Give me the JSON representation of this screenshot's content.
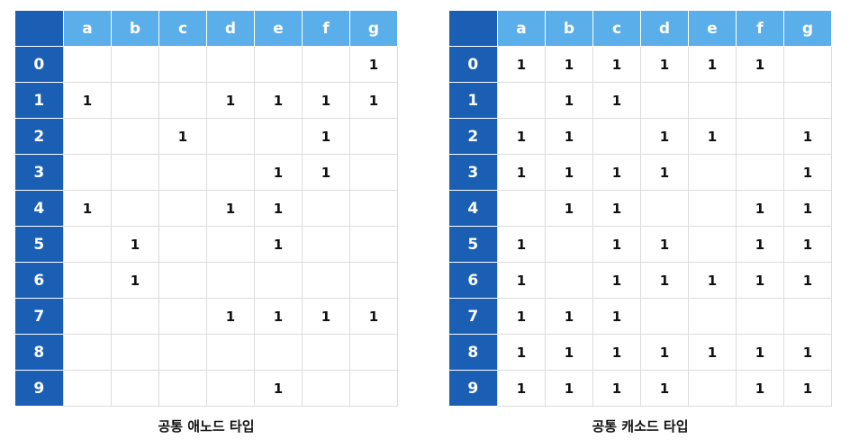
{
  "columns": [
    "a",
    "b",
    "c",
    "d",
    "e",
    "f",
    "g"
  ],
  "rows": [
    "0",
    "1",
    "2",
    "3",
    "4",
    "5",
    "6",
    "7",
    "8",
    "9"
  ],
  "tables": [
    {
      "caption": "공통 애노드 타입",
      "cells": [
        [
          "",
          "",
          "",
          "",
          "",
          "",
          "1"
        ],
        [
          "1",
          "",
          "",
          "1",
          "1",
          "1",
          "1"
        ],
        [
          "",
          "",
          "1",
          "",
          "",
          "1",
          ""
        ],
        [
          "",
          "",
          "",
          "",
          "1",
          "1",
          ""
        ],
        [
          "1",
          "",
          "",
          "1",
          "1",
          "",
          ""
        ],
        [
          "",
          "1",
          "",
          "",
          "1",
          "",
          ""
        ],
        [
          "",
          "1",
          "",
          "",
          "",
          "",
          ""
        ],
        [
          "",
          "",
          "",
          "1",
          "1",
          "1",
          "1"
        ],
        [
          "",
          "",
          "",
          "",
          "",
          "",
          ""
        ],
        [
          "",
          "",
          "",
          "",
          "1",
          "",
          ""
        ]
      ]
    },
    {
      "caption": "공통 캐소드 타입",
      "cells": [
        [
          "1",
          "1",
          "1",
          "1",
          "1",
          "1",
          ""
        ],
        [
          "",
          "1",
          "1",
          "",
          "",
          "",
          ""
        ],
        [
          "1",
          "1",
          "",
          "1",
          "1",
          "",
          "1"
        ],
        [
          "1",
          "1",
          "1",
          "1",
          "",
          "",
          "1"
        ],
        [
          "",
          "1",
          "1",
          "",
          "",
          "1",
          "1"
        ],
        [
          "1",
          "",
          "1",
          "1",
          "",
          "1",
          "1"
        ],
        [
          "1",
          "",
          "1",
          "1",
          "1",
          "1",
          "1"
        ],
        [
          "1",
          "1",
          "1",
          "",
          "",
          "",
          ""
        ],
        [
          "1",
          "1",
          "1",
          "1",
          "1",
          "1",
          "1"
        ],
        [
          "1",
          "1",
          "1",
          "1",
          "",
          "1",
          "1"
        ]
      ]
    }
  ],
  "colors": {
    "header_dark": "#1a5fb4",
    "header_light": "#5aaeea",
    "grid": "#dcdcdc"
  }
}
